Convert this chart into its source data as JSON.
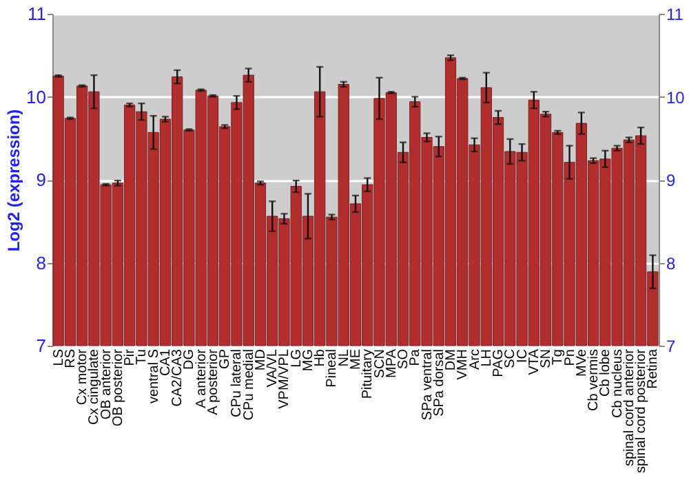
{
  "chart_data": {
    "type": "bar",
    "ylabel": "Log2 (expression)",
    "categories": [
      "LS",
      "RS",
      "Cx motor",
      "Cx cingulate",
      "OB anterior",
      "OB posterior",
      "Pir",
      "Tu",
      "ventral S",
      "CA1",
      "CA2/CA3",
      "DG",
      "A anterior",
      "A posterior",
      "GP",
      "CPu lateral",
      "CPu medial",
      "MD",
      "VA/VL",
      "VPM/VPL",
      "LG",
      "MG",
      "Hb",
      "Pineal",
      "NL",
      "ME",
      "Pituitary",
      "SCN",
      "MPA",
      "SO",
      "Pa",
      "SPa ventral",
      "SPa dorsal",
      "DM",
      "VMH",
      "Arc",
      "LH",
      "PAG",
      "SC",
      "IC",
      "VTA",
      "SN",
      "Tg",
      "Pn",
      "MVe",
      "Cb vermis",
      "Cb lobe",
      "Cb nucleus",
      "spinal cord anterior",
      "spinal cord posterior",
      "Retina"
    ],
    "series": [
      {
        "color": "#b22e2e",
        "values": [
          10.25,
          9.74,
          10.13,
          10.06,
          8.94,
          8.96,
          9.9,
          9.82,
          9.57,
          9.73,
          10.24,
          9.6,
          10.08,
          10.01,
          9.64,
          9.93,
          10.26,
          8.96,
          8.56,
          8.53,
          8.92,
          8.56,
          10.06,
          8.55,
          10.15,
          8.71,
          8.94,
          9.98,
          10.05,
          9.33,
          9.94,
          9.51,
          9.4,
          10.47,
          10.22,
          9.42,
          10.11,
          9.75,
          9.34,
          9.33,
          9.96,
          9.79,
          9.57,
          9.21,
          9.68,
          9.23,
          9.25,
          9.38,
          9.48,
          9.53,
          7.89
        ],
        "errors": [
          0.01,
          0.01,
          0.01,
          0.2,
          0.01,
          0.03,
          0.02,
          0.1,
          0.2,
          0.03,
          0.08,
          0.01,
          0.01,
          0.01,
          0.02,
          0.08,
          0.08,
          0.02,
          0.18,
          0.06,
          0.07,
          0.27,
          0.3,
          0.03,
          0.03,
          0.1,
          0.08,
          0.25,
          0.01,
          0.12,
          0.06,
          0.05,
          0.12,
          0.03,
          0.01,
          0.08,
          0.18,
          0.08,
          0.15,
          0.1,
          0.1,
          0.03,
          0.02,
          0.2,
          0.13,
          0.03,
          0.1,
          0.03,
          0.03,
          0.1,
          0.2
        ]
      }
    ],
    "ylim": [
      7,
      11
    ],
    "yticks": [
      7,
      8,
      9,
      10,
      11
    ],
    "y2lim": [
      7,
      11
    ],
    "y2ticks": [
      7,
      8,
      9,
      10,
      11
    ],
    "grid": "y"
  }
}
